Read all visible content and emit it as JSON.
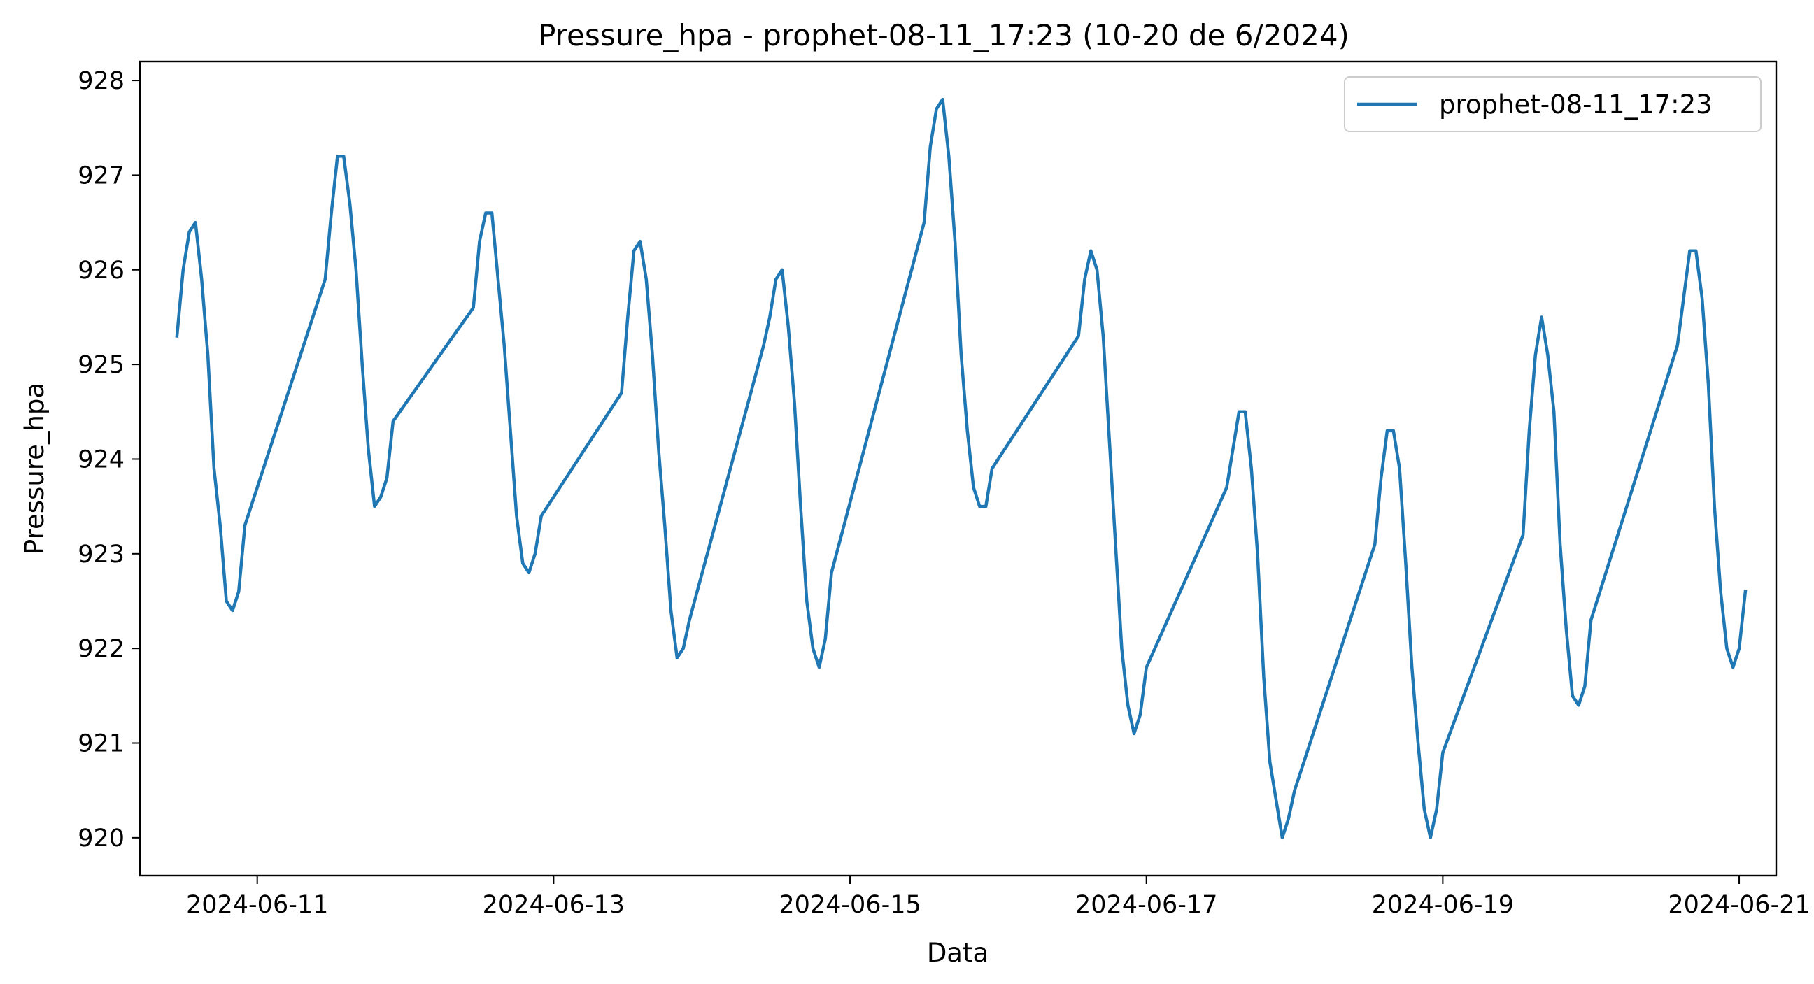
{
  "chart_data": {
    "type": "line",
    "title": "Pressure_hpa - prophet-08-11_17:23 (10-20 de 6/2024)",
    "xlabel": "Data",
    "ylabel": "Pressure_hpa",
    "xlim": [
      "2024-06-10 05:00",
      "2024-06-21 06:00"
    ],
    "ylim": [
      919.6,
      928.2
    ],
    "x_ticks": [
      "2024-06-11",
      "2024-06-13",
      "2024-06-15",
      "2024-06-17",
      "2024-06-19",
      "2024-06-21"
    ],
    "y_ticks": [
      920,
      921,
      922,
      923,
      924,
      925,
      926,
      927,
      928
    ],
    "grid": false,
    "legend_position": "top-right",
    "series": [
      {
        "name": "prophet-08-11_17:23",
        "color": "#1f77b4",
        "points": [
          [
            "2024-06-10 11:00",
            925.3
          ],
          [
            "2024-06-10 12:00",
            926.0
          ],
          [
            "2024-06-10 13:00",
            926.4
          ],
          [
            "2024-06-10 14:00",
            926.5
          ],
          [
            "2024-06-10 15:00",
            925.9
          ],
          [
            "2024-06-10 16:00",
            925.1
          ],
          [
            "2024-06-10 17:00",
            923.9
          ],
          [
            "2024-06-10 18:00",
            923.3
          ],
          [
            "2024-06-10 19:00",
            922.5
          ],
          [
            "2024-06-10 20:00",
            922.4
          ],
          [
            "2024-06-10 21:00",
            922.6
          ],
          [
            "2024-06-10 22:00",
            923.3
          ],
          [
            "2024-06-11 11:00",
            925.9
          ],
          [
            "2024-06-11 12:00",
            926.6
          ],
          [
            "2024-06-11 13:00",
            927.2
          ],
          [
            "2024-06-11 14:00",
            927.2
          ],
          [
            "2024-06-11 15:00",
            926.7
          ],
          [
            "2024-06-11 16:00",
            926.0
          ],
          [
            "2024-06-11 17:00",
            925.0
          ],
          [
            "2024-06-11 18:00",
            924.1
          ],
          [
            "2024-06-11 19:00",
            923.5
          ],
          [
            "2024-06-11 20:00",
            923.6
          ],
          [
            "2024-06-11 21:00",
            923.8
          ],
          [
            "2024-06-11 22:00",
            924.4
          ],
          [
            "2024-06-12 11:00",
            925.6
          ],
          [
            "2024-06-12 12:00",
            926.3
          ],
          [
            "2024-06-12 13:00",
            926.6
          ],
          [
            "2024-06-12 14:00",
            926.6
          ],
          [
            "2024-06-12 15:00",
            925.9
          ],
          [
            "2024-06-12 16:00",
            925.2
          ],
          [
            "2024-06-12 17:00",
            924.3
          ],
          [
            "2024-06-12 18:00",
            923.4
          ],
          [
            "2024-06-12 19:00",
            922.9
          ],
          [
            "2024-06-12 20:00",
            922.8
          ],
          [
            "2024-06-12 21:00",
            923.0
          ],
          [
            "2024-06-12 22:00",
            923.4
          ],
          [
            "2024-06-13 11:00",
            924.7
          ],
          [
            "2024-06-13 12:00",
            925.5
          ],
          [
            "2024-06-13 13:00",
            926.2
          ],
          [
            "2024-06-13 14:00",
            926.3
          ],
          [
            "2024-06-13 15:00",
            925.9
          ],
          [
            "2024-06-13 16:00",
            925.1
          ],
          [
            "2024-06-13 17:00",
            924.1
          ],
          [
            "2024-06-13 18:00",
            923.3
          ],
          [
            "2024-06-13 19:00",
            922.4
          ],
          [
            "2024-06-13 20:00",
            921.9
          ],
          [
            "2024-06-13 21:00",
            922.0
          ],
          [
            "2024-06-13 22:00",
            922.3
          ],
          [
            "2024-06-14 10:00",
            925.2
          ],
          [
            "2024-06-14 11:00",
            925.5
          ],
          [
            "2024-06-14 12:00",
            925.9
          ],
          [
            "2024-06-14 13:00",
            926.0
          ],
          [
            "2024-06-14 14:00",
            925.4
          ],
          [
            "2024-06-14 15:00",
            924.6
          ],
          [
            "2024-06-14 16:00",
            923.5
          ],
          [
            "2024-06-14 17:00",
            922.5
          ],
          [
            "2024-06-14 18:00",
            922.0
          ],
          [
            "2024-06-14 19:00",
            921.8
          ],
          [
            "2024-06-14 20:00",
            922.1
          ],
          [
            "2024-06-14 21:00",
            922.8
          ],
          [
            "2024-06-15 12:00",
            926.5
          ],
          [
            "2024-06-15 13:00",
            927.3
          ],
          [
            "2024-06-15 14:00",
            927.7
          ],
          [
            "2024-06-15 15:00",
            927.8
          ],
          [
            "2024-06-15 16:00",
            927.2
          ],
          [
            "2024-06-15 17:00",
            926.3
          ],
          [
            "2024-06-15 18:00",
            925.1
          ],
          [
            "2024-06-15 19:00",
            924.3
          ],
          [
            "2024-06-15 20:00",
            923.7
          ],
          [
            "2024-06-15 21:00",
            923.5
          ],
          [
            "2024-06-15 22:00",
            923.5
          ],
          [
            "2024-06-15 23:00",
            923.9
          ],
          [
            "2024-06-16 13:00",
            925.3
          ],
          [
            "2024-06-16 14:00",
            925.9
          ],
          [
            "2024-06-16 15:00",
            926.2
          ],
          [
            "2024-06-16 16:00",
            926.0
          ],
          [
            "2024-06-16 17:00",
            925.3
          ],
          [
            "2024-06-16 18:00",
            924.2
          ],
          [
            "2024-06-16 19:00",
            923.1
          ],
          [
            "2024-06-16 20:00",
            922.0
          ],
          [
            "2024-06-16 21:00",
            921.4
          ],
          [
            "2024-06-16 22:00",
            921.1
          ],
          [
            "2024-06-16 23:00",
            921.3
          ],
          [
            "2024-06-17 00:00",
            921.8
          ],
          [
            "2024-06-17 13:00",
            923.7
          ],
          [
            "2024-06-17 14:00",
            924.1
          ],
          [
            "2024-06-17 15:00",
            924.5
          ],
          [
            "2024-06-17 16:00",
            924.5
          ],
          [
            "2024-06-17 17:00",
            923.9
          ],
          [
            "2024-06-17 18:00",
            923.0
          ],
          [
            "2024-06-17 19:00",
            921.7
          ],
          [
            "2024-06-17 20:00",
            920.8
          ],
          [
            "2024-06-17 21:00",
            920.4
          ],
          [
            "2024-06-17 22:00",
            920.0
          ],
          [
            "2024-06-17 23:00",
            920.2
          ],
          [
            "2024-06-18 00:00",
            920.5
          ],
          [
            "2024-06-18 13:00",
            923.1
          ],
          [
            "2024-06-18 14:00",
            923.8
          ],
          [
            "2024-06-18 15:00",
            924.3
          ],
          [
            "2024-06-18 16:00",
            924.3
          ],
          [
            "2024-06-18 17:00",
            923.9
          ],
          [
            "2024-06-18 18:00",
            922.9
          ],
          [
            "2024-06-18 19:00",
            921.8
          ],
          [
            "2024-06-18 20:00",
            921.0
          ],
          [
            "2024-06-18 21:00",
            920.3
          ],
          [
            "2024-06-18 22:00",
            920.0
          ],
          [
            "2024-06-18 23:00",
            920.3
          ],
          [
            "2024-06-19 00:00",
            920.9
          ],
          [
            "2024-06-19 13:00",
            923.2
          ],
          [
            "2024-06-19 14:00",
            924.3
          ],
          [
            "2024-06-19 15:00",
            925.1
          ],
          [
            "2024-06-19 16:00",
            925.5
          ],
          [
            "2024-06-19 17:00",
            925.1
          ],
          [
            "2024-06-19 18:00",
            924.5
          ],
          [
            "2024-06-19 19:00",
            923.1
          ],
          [
            "2024-06-19 20:00",
            922.2
          ],
          [
            "2024-06-19 21:00",
            921.5
          ],
          [
            "2024-06-19 22:00",
            921.4
          ],
          [
            "2024-06-19 23:00",
            921.6
          ],
          [
            "2024-06-20 00:00",
            922.3
          ],
          [
            "2024-06-20 14:00",
            925.2
          ],
          [
            "2024-06-20 15:00",
            925.7
          ],
          [
            "2024-06-20 16:00",
            926.2
          ],
          [
            "2024-06-20 17:00",
            926.2
          ],
          [
            "2024-06-20 18:00",
            925.7
          ],
          [
            "2024-06-20 19:00",
            924.8
          ],
          [
            "2024-06-20 20:00",
            923.5
          ],
          [
            "2024-06-20 21:00",
            922.6
          ],
          [
            "2024-06-20 22:00",
            922.0
          ],
          [
            "2024-06-20 23:00",
            921.8
          ],
          [
            "2024-06-21 00:00",
            922.0
          ],
          [
            "2024-06-21 01:00",
            922.6
          ]
        ]
      }
    ]
  }
}
